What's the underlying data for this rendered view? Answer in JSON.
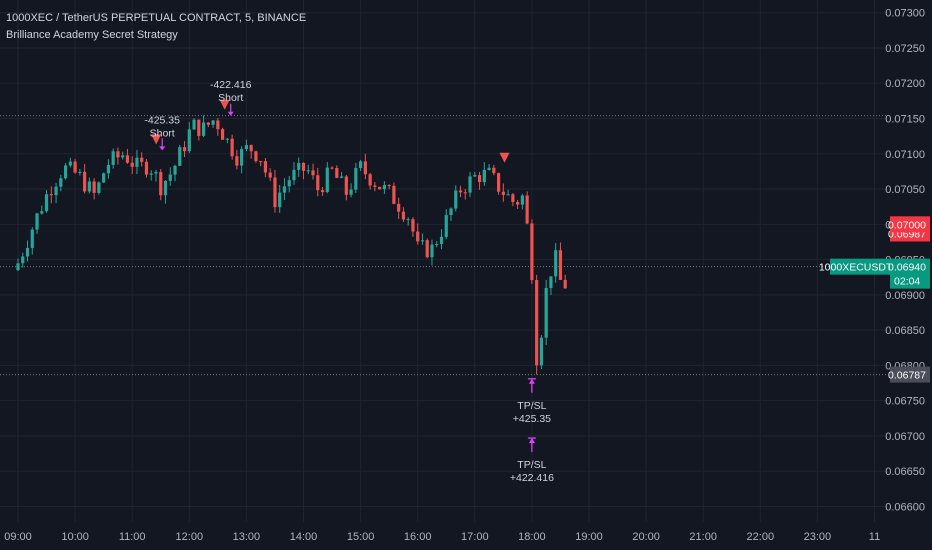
{
  "legend": {
    "title": "1000XEC / TetherUS PERPETUAL CONTRACT, 5, BINANCE",
    "indicator": "Brilliance Academy Secret Strategy"
  },
  "colors": {
    "background": "#131722",
    "grid": "#1f2430",
    "up": "#26a69a",
    "down": "#ef5350",
    "signal": "#e040fb",
    "axis_text": "#b2b5be"
  },
  "chart_data": {
    "type": "candlestick",
    "symbol": "1000XECUSDT.P",
    "ylim": [
      0.06578,
      0.07318
    ],
    "y_ticks": [
      "0.06600",
      "0.06650",
      "0.06700",
      "0.06750",
      "0.06800",
      "0.06850",
      "0.06900",
      "0.06950",
      "0.07000",
      "0.07050",
      "0.07100",
      "0.07150",
      "0.07200",
      "0.07250",
      "0.07300"
    ],
    "x_ticks": [
      {
        "label": "09:00",
        "t": 9
      },
      {
        "label": "10:00",
        "t": 10
      },
      {
        "label": "11:00",
        "t": 11
      },
      {
        "label": "12:00",
        "t": 12
      },
      {
        "label": "13:00",
        "t": 13
      },
      {
        "label": "14:00",
        "t": 14
      },
      {
        "label": "15:00",
        "t": 15
      },
      {
        "label": "16:00",
        "t": 16
      },
      {
        "label": "17:00",
        "t": 17
      },
      {
        "label": "18:00",
        "t": 18
      },
      {
        "label": "19:00",
        "t": 19
      },
      {
        "label": "20:00",
        "t": 20
      },
      {
        "label": "21:00",
        "t": 21
      },
      {
        "label": "22:00",
        "t": 22
      },
      {
        "label": "23:00",
        "t": 23
      },
      {
        "label": "11",
        "t": 24
      }
    ],
    "price_labels": [
      {
        "value": 0.0694,
        "text": "0.06940",
        "sub": "02:04",
        "color": "#089981"
      },
      {
        "value": 0.06987,
        "text": "0.06987",
        "color": "#f23645"
      },
      {
        "value": 0.07,
        "text": "0.07000",
        "color": "#f23645"
      },
      {
        "value": 0.06787,
        "text": "0.06787",
        "color": "#4a4e59"
      }
    ],
    "symbol_tag": {
      "text": "1000XECUSDT.P",
      "value": 0.0694
    },
    "hlines": [
      0.07154,
      0.06787,
      0.0694
    ],
    "annotations": [
      {
        "kind": "short",
        "t": 11.42,
        "value": 0.07119,
        "label": "-425.35",
        "sub": "Short",
        "label_value": 0.07143
      },
      {
        "kind": "short",
        "t": 12.62,
        "value": 0.07168,
        "label": "-422.416",
        "sub": "Short",
        "label_value": 0.07193
      },
      {
        "kind": "short",
        "t": 17.52,
        "value": 0.07093,
        "label": "",
        "sub": "",
        "label_value": null
      },
      {
        "kind": "tpsl",
        "t": 18.0,
        "value": 0.06781,
        "label": "TP/SL",
        "sub": "+425.35"
      },
      {
        "kind": "tpsl",
        "t": 18.0,
        "value": 0.06697,
        "label": "TP/SL",
        "sub": "+422.416"
      }
    ],
    "candles": []
  }
}
